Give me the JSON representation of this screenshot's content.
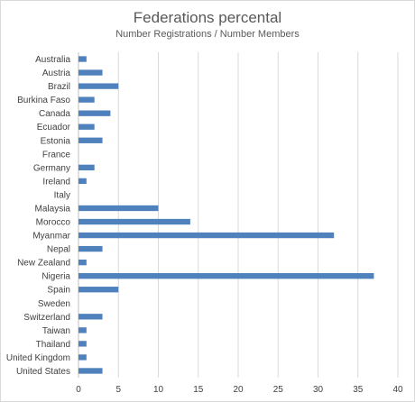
{
  "chart_data": {
    "type": "bar",
    "orientation": "horizontal",
    "title": "Federations percental",
    "subtitle": "Number Registrations / Number Members",
    "categories": [
      "Australia",
      "Austria",
      "Brazil",
      "Burkina Faso",
      "Canada",
      "Ecuador",
      "Estonia",
      "France",
      "Germany",
      "Ireland",
      "Italy",
      "Malaysia",
      "Morocco",
      "Myanmar",
      "Nepal",
      "New Zealand",
      "Nigeria",
      "Spain",
      "Sweden",
      "Switzerland",
      "Taiwan",
      "Thailand",
      "United Kingdom",
      "United States"
    ],
    "values": [
      1,
      3,
      5,
      2,
      4,
      2,
      3,
      0,
      2,
      1,
      0,
      10,
      14,
      32,
      3,
      1,
      37,
      5,
      0,
      3,
      1,
      1,
      1,
      3
    ],
    "xlim": [
      0,
      40
    ],
    "xticks": [
      0,
      5,
      10,
      15,
      20,
      25,
      30,
      35,
      40
    ],
    "grid": true,
    "legend": "none",
    "bar_color": "#4f81bd"
  }
}
